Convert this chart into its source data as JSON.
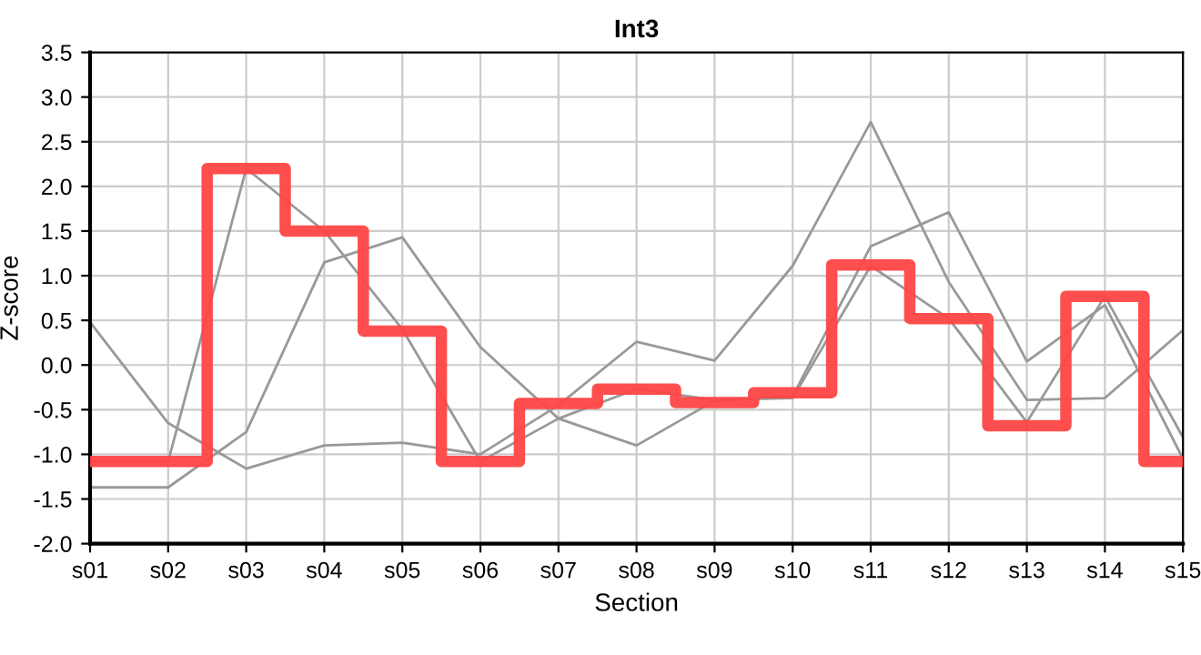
{
  "chart_data": {
    "type": "line",
    "title": "Int3",
    "xlabel": "Section",
    "ylabel": "Z-score",
    "categories": [
      "s01",
      "s02",
      "s03",
      "s04",
      "s05",
      "s06",
      "s07",
      "s08",
      "s09",
      "s10",
      "s11",
      "s12",
      "s13",
      "s14",
      "s15"
    ],
    "series": [
      {
        "color": "#999999",
        "values": [
          0.48,
          -0.65,
          -1.16,
          -0.9,
          -0.87,
          -1.0,
          -0.45,
          0.26,
          0.05,
          1.11,
          2.72,
          0.93,
          -0.39,
          -0.37,
          0.39
        ]
      },
      {
        "color": "#999999",
        "values": [
          -1.37,
          -1.37,
          -0.75,
          1.15,
          1.43,
          0.2,
          -0.6,
          -0.9,
          -0.4,
          -0.35,
          1.33,
          1.71,
          0.04,
          0.67,
          -1.05
        ]
      },
      {
        "color": "#999999",
        "values": [
          -1.08,
          -1.08,
          2.2,
          1.5,
          0.4,
          -1.08,
          -0.6,
          -0.27,
          -0.39,
          -0.37,
          1.11,
          0.52,
          -0.64,
          0.77,
          -0.81
        ]
      },
      {
        "type": "step",
        "color": "#ff4444",
        "values": [
          -1.08,
          -1.08,
          2.2,
          1.5,
          0.38,
          -1.08,
          -0.43,
          -0.27,
          -0.42,
          -0.31,
          1.12,
          0.52,
          -0.68,
          0.77,
          -1.08
        ]
      }
    ],
    "ylim": [
      -2.0,
      3.5
    ],
    "yticks": [
      {
        "value": -2,
        "label": "-2.0"
      },
      -1.5,
      {
        "value": -1,
        "label": "-1.0"
      },
      -0.5,
      {
        "value": 0,
        "label": "0.0"
      },
      0.5,
      {
        "value": 1,
        "label": "1.0"
      },
      1.5,
      {
        "value": 2,
        "label": "2.0"
      },
      2.5,
      {
        "value": 3,
        "label": "3.0"
      },
      3.5
    ],
    "grid": true
  }
}
